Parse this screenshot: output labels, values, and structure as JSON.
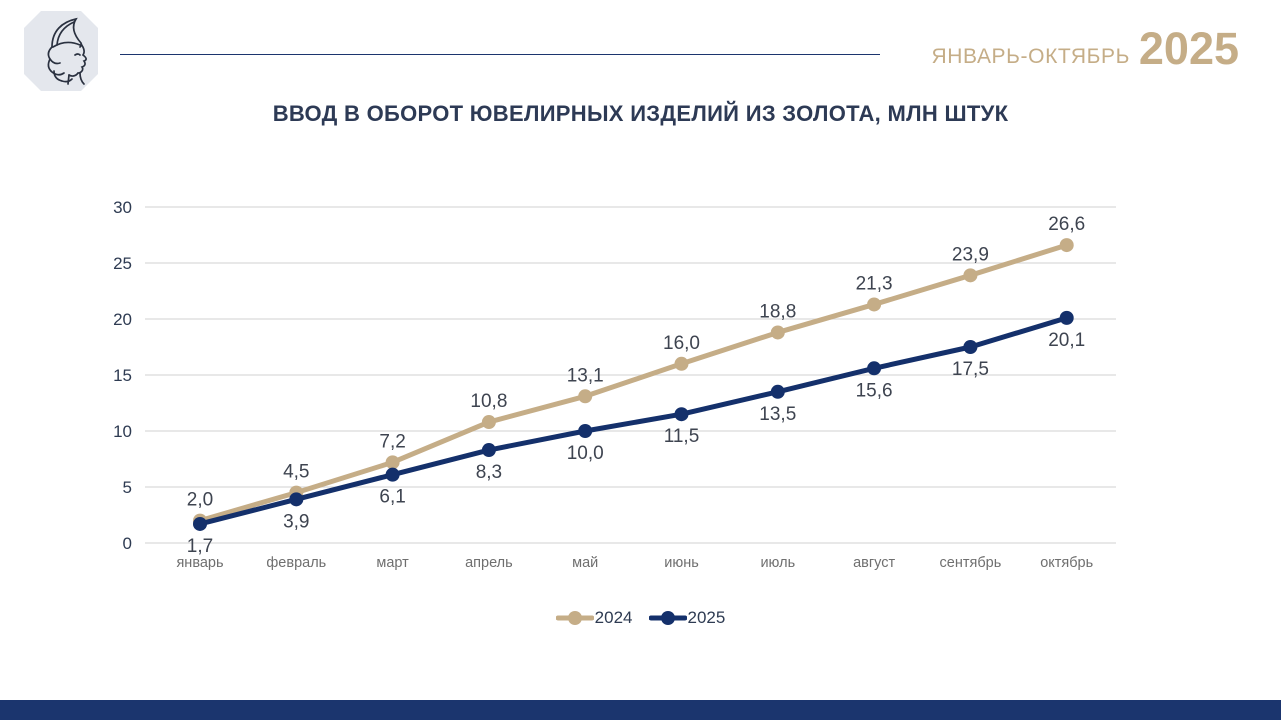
{
  "header": {
    "period_label": "ЯНВАРЬ-ОКТЯБРЬ",
    "year": "2025"
  },
  "title": "ВВОД В ОБОРОТ ЮВЕЛИРНЫХ ИЗДЕЛИЙ ИЗ ЗОЛОТА, МЛН ШТУК",
  "chart_data": {
    "type": "line",
    "title": "ВВОД В ОБОРОТ ЮВЕЛИРНЫХ ИЗДЕЛИЙ ИЗ ЗОЛОТА, МЛН ШТУК",
    "categories": [
      "январь",
      "февраль",
      "март",
      "апрель",
      "май",
      "июнь",
      "июль",
      "август",
      "сентябрь",
      "октябрь"
    ],
    "series": [
      {
        "name": "2024",
        "color": "#C5AD87",
        "label_position": "above",
        "values": [
          2.0,
          4.5,
          7.2,
          10.8,
          13.1,
          16.0,
          18.8,
          21.3,
          23.9,
          26.6
        ]
      },
      {
        "name": "2025",
        "color": "#14306B",
        "label_position": "below",
        "values": [
          1.7,
          3.9,
          6.1,
          8.3,
          10.0,
          11.5,
          13.5,
          15.6,
          17.5,
          20.1
        ]
      }
    ],
    "ylim": [
      0,
      30
    ],
    "yticks": [
      0,
      5,
      10,
      15,
      20,
      25,
      30
    ],
    "grid": true,
    "legend_position": "bottom",
    "decimal_separator": ","
  },
  "colors": {
    "accent_tan": "#C5AD87",
    "navy": "#1C356E",
    "footer_bar": "#1B356E",
    "title_text": "#2D3A55",
    "axis_text": "#2E3B52",
    "category_text": "#6F6F6F",
    "data_label_text": "#3E4450",
    "gridline": "#D9D9D9",
    "logo_bg": "#E4E7ED",
    "logo_ink": "#2A3140"
  }
}
